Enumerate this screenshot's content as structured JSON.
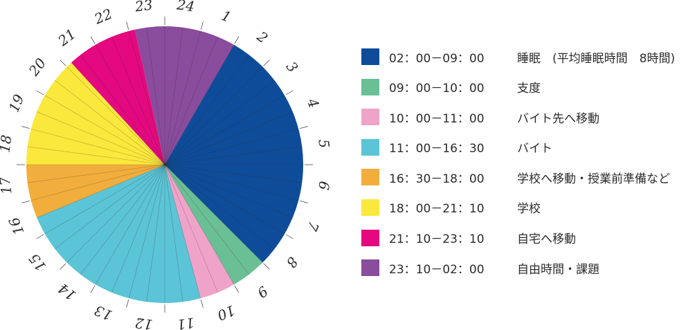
{
  "chart_data": {
    "type": "pie",
    "title": "",
    "subtitle": "",
    "clock_hours": [
      "24",
      "1",
      "2",
      "3",
      "4",
      "5",
      "6",
      "7",
      "8",
      "9",
      "10",
      "11",
      "12",
      "13",
      "14",
      "15",
      "16",
      "17",
      "18",
      "19",
      "20",
      "21",
      "22",
      "23"
    ],
    "segments": [
      {
        "range": "02：00－09：00",
        "label": "睡眠　(平均睡眠時間　8時間)",
        "start": 2.0,
        "end": 9.0,
        "hours": 7.0,
        "color": "#0E4C9A"
      },
      {
        "range": "09：00－10：00",
        "label": "支度",
        "start": 9.0,
        "end": 10.0,
        "hours": 1.0,
        "color": "#6BBF95"
      },
      {
        "range": "10：00－11：00",
        "label": "バイト先へ移動",
        "start": 10.0,
        "end": 11.0,
        "hours": 1.0,
        "color": "#F0A3C9"
      },
      {
        "range": "11：00－16：30",
        "label": "バイト",
        "start": 11.0,
        "end": 16.5,
        "hours": 5.5,
        "color": "#5BC4D6"
      },
      {
        "range": "16：30－18：00",
        "label": "学校へ移動・授業前準備など",
        "start": 16.5,
        "end": 18.0,
        "hours": 1.5,
        "color": "#F2AE3C"
      },
      {
        "range": "18：00－21：10",
        "label": "学校",
        "start": 18.0,
        "end": 21.1667,
        "hours": 3.1667,
        "color": "#FBE83C"
      },
      {
        "range": "21：10－23：10",
        "label": "自宅へ移動",
        "start": 21.1667,
        "end": 23.1667,
        "hours": 2.0,
        "color": "#E4097F"
      },
      {
        "range": "23：10－02：00",
        "label": "自由時間・課題",
        "start": 23.1667,
        "end": 26.0,
        "hours": 2.8333,
        "color": "#8A4C9C"
      }
    ]
  }
}
